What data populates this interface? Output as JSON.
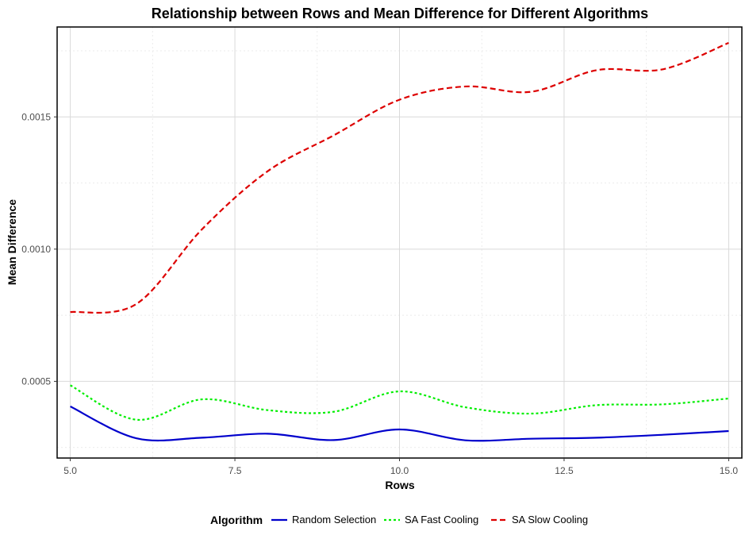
{
  "chart_data": {
    "type": "line",
    "title": "Relationship between Rows and Mean Difference for Different Algorithms",
    "xlabel": "Rows",
    "ylabel": "Mean Difference",
    "xlim": [
      4.8,
      15.2
    ],
    "ylim": [
      0.00021,
      0.00184
    ],
    "x_ticks": [
      5.0,
      7.5,
      10.0,
      12.5,
      15.0
    ],
    "x_tick_labels": [
      "5.0",
      "7.5",
      "10.0",
      "12.5",
      "15.0"
    ],
    "y_ticks": [
      0.0005,
      0.001,
      0.0015
    ],
    "y_tick_labels": [
      "0.0005",
      "0.0010",
      "0.0015"
    ],
    "grid": true,
    "legend": {
      "title": "Algorithm",
      "position": "bottom"
    },
    "x": [
      5,
      6,
      7,
      8,
      9,
      10,
      11,
      12,
      13,
      14,
      15
    ],
    "series": [
      {
        "name": "Random Selection",
        "color": "#0000cc",
        "dash": "solid",
        "values": [
          0.000405,
          0.000285,
          0.000287,
          0.000302,
          0.000278,
          0.000318,
          0.000277,
          0.000283,
          0.000287,
          0.000298,
          0.000312
        ]
      },
      {
        "name": "SA Fast Cooling",
        "color": "#00ee00",
        "dash": "dotted",
        "values": [
          0.000485,
          0.000355,
          0.000432,
          0.000391,
          0.000385,
          0.000462,
          0.000402,
          0.000378,
          0.00041,
          0.000413,
          0.000435
        ]
      },
      {
        "name": "SA Slow Cooling",
        "color": "#dd0000",
        "dash": "dashed",
        "values": [
          0.000762,
          0.000792,
          0.001075,
          0.001295,
          0.00143,
          0.001565,
          0.001615,
          0.001595,
          0.001677,
          0.00168,
          0.00178
        ]
      }
    ]
  }
}
